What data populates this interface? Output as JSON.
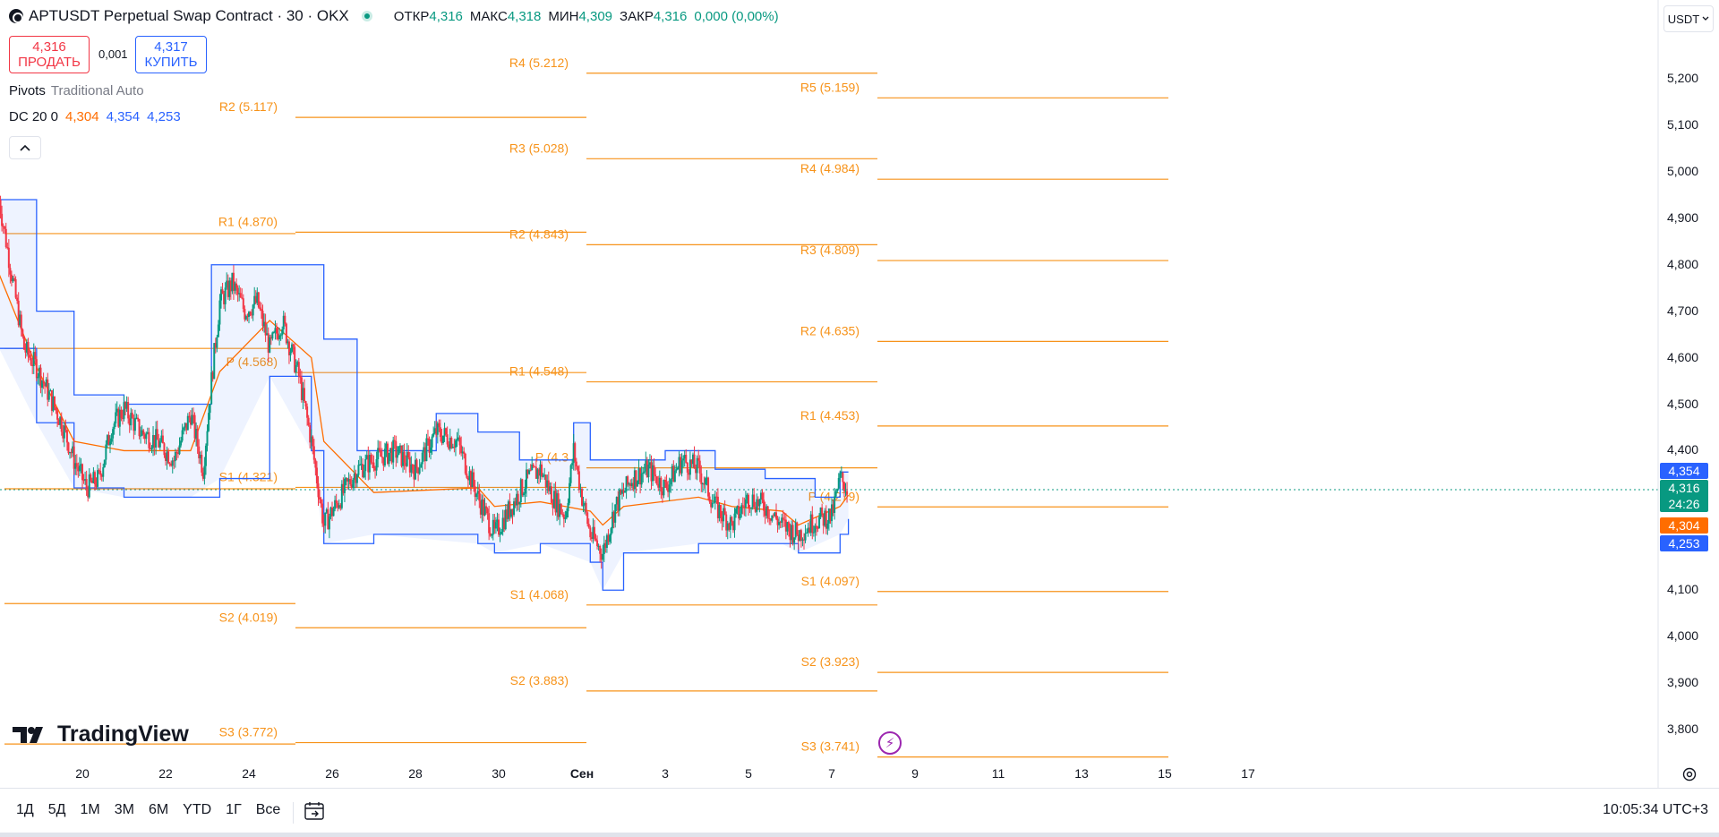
{
  "header": {
    "title": "APTUSDT Perpetual Swap Contract · 30 · OKX",
    "ohlc": [
      {
        "label": "ОТКР",
        "value": "4,316"
      },
      {
        "label": "МАКС",
        "value": "4,318"
      },
      {
        "label": "МИН",
        "value": "4,309"
      },
      {
        "label": "ЗАКР",
        "value": "4,316"
      },
      {
        "label": "",
        "value": "0,000 (0,00%)"
      }
    ]
  },
  "trade": {
    "sell_price": "4,316",
    "sell_label": "ПРОДАТЬ",
    "spread": "0,001",
    "buy_price": "4,317",
    "buy_label": "КУПИТЬ"
  },
  "indicators": {
    "pivots_name": "Pivots",
    "pivots_params": "Traditional Auto",
    "dc_name": "DC 20 0",
    "dc_mid": "4,304",
    "dc_upper": "4,354",
    "dc_lower": "4,253"
  },
  "currency": "USDT",
  "watermark": "TradingView",
  "bottom": {
    "timeframes": [
      "1Д",
      "5Д",
      "1М",
      "3М",
      "6М",
      "YTD",
      "1Г",
      "Все"
    ],
    "clock": "10:05:34 UTC+3"
  },
  "colors": {
    "up": "#089981",
    "down": "#f23645",
    "pivot": "#f7931a",
    "dc_band": "#2962ff",
    "dc_mid": "#ff6d00",
    "accent_purple": "#9c27b0"
  },
  "price_tags": [
    {
      "value": "4,354",
      "color": "#2962ff"
    },
    {
      "value": "4,316",
      "sub": "24:26",
      "color": "#089981"
    },
    {
      "value": "4,304",
      "color": "#ff6d00"
    },
    {
      "value": "4,253",
      "color": "#2962ff"
    }
  ],
  "chart_data": {
    "type": "candlestick",
    "price_axis_ticks": [
      "5,200",
      "5,100",
      "5,000",
      "4,900",
      "4,800",
      "4,700",
      "4,600",
      "4,500",
      "4,400",
      "4,100",
      "4,000",
      "3,900",
      "3,800"
    ],
    "time_axis_ticks": [
      "20",
      "22",
      "24",
      "26",
      "28",
      "30",
      "Сен",
      "3",
      "5",
      "7",
      "9",
      "11",
      "13",
      "15",
      "17"
    ],
    "pivot_periods": [
      {
        "levels": [
          {
            "name": "R2",
            "value": 5.117,
            "label": "R2 (5.117)"
          },
          {
            "name": "R1",
            "value": 4.87,
            "label": "R1 (4.870)"
          },
          {
            "name": "P",
            "value": 4.568,
            "label": "P (4.568)"
          },
          {
            "name": "S1",
            "value": 4.321,
            "label": "S1 (4.321)"
          },
          {
            "name": "S2",
            "value": 4.019,
            "label": "S2 (4.019)"
          },
          {
            "name": "S3",
            "value": 3.772,
            "label": "S3 (3.772)"
          }
        ]
      },
      {
        "levels": [
          {
            "name": "R4",
            "value": 5.212,
            "label": "R4 (5.212)"
          },
          {
            "name": "R3",
            "value": 5.028,
            "label": "R3 (5.028)"
          },
          {
            "name": "R2",
            "value": 4.843,
            "label": "R2 (4.843)"
          },
          {
            "name": "R1",
            "value": 4.548,
            "label": "R1 (4.548)"
          },
          {
            "name": "P",
            "value": 4.363,
            "label": "P (4.3"
          },
          {
            "name": "S1",
            "value": 4.068,
            "label": "S1 (4.068)"
          },
          {
            "name": "S2",
            "value": 3.883,
            "label": "S2 (3.883)"
          }
        ]
      },
      {
        "levels": [
          {
            "name": "R5",
            "value": 5.159,
            "label": "R5 (5.159)"
          },
          {
            "name": "R4",
            "value": 4.984,
            "label": "R4 (4.984)"
          },
          {
            "name": "R3",
            "value": 4.809,
            "label": "R3 (4.809)"
          },
          {
            "name": "R2",
            "value": 4.635,
            "label": "R2 (4.635)"
          },
          {
            "name": "R1",
            "value": 4.453,
            "label": "R1 (4.453)"
          },
          {
            "name": "P",
            "value": 4.279,
            "label": "P (4.279)"
          },
          {
            "name": "S1",
            "value": 4.097,
            "label": "S1 (4.097)"
          },
          {
            "name": "S2",
            "value": 3.923,
            "label": "S2 (3.923)"
          },
          {
            "name": "S3",
            "value": 3.741,
            "label": "S3 (3.741)"
          }
        ]
      }
    ],
    "price_path": [
      [
        18.0,
        4.94
      ],
      [
        18.3,
        4.78
      ],
      [
        18.6,
        4.62
      ],
      [
        18.9,
        4.58
      ],
      [
        19.2,
        4.52
      ],
      [
        19.5,
        4.46
      ],
      [
        19.8,
        4.38
      ],
      [
        20.1,
        4.32
      ],
      [
        20.4,
        4.34
      ],
      [
        20.7,
        4.45
      ],
      [
        21.0,
        4.49
      ],
      [
        21.4,
        4.44
      ],
      [
        21.8,
        4.42
      ],
      [
        22.2,
        4.38
      ],
      [
        22.6,
        4.48
      ],
      [
        22.9,
        4.36
      ],
      [
        23.1,
        4.55
      ],
      [
        23.3,
        4.72
      ],
      [
        23.6,
        4.76
      ],
      [
        23.9,
        4.7
      ],
      [
        24.2,
        4.72
      ],
      [
        24.5,
        4.62
      ],
      [
        24.8,
        4.68
      ],
      [
        25.2,
        4.56
      ],
      [
        25.5,
        4.42
      ],
      [
        25.8,
        4.24
      ],
      [
        26.2,
        4.3
      ],
      [
        26.6,
        4.36
      ],
      [
        27.0,
        4.38
      ],
      [
        27.5,
        4.4
      ],
      [
        28.0,
        4.36
      ],
      [
        28.5,
        4.44
      ],
      [
        29.0,
        4.42
      ],
      [
        29.5,
        4.3
      ],
      [
        29.9,
        4.22
      ],
      [
        30.3,
        4.28
      ],
      [
        30.7,
        4.34
      ],
      [
        31.0,
        4.36
      ],
      [
        31.3,
        4.3
      ],
      [
        31.6,
        4.26
      ],
      [
        31.8,
        4.4
      ],
      [
        32.0,
        4.3
      ],
      [
        32.2,
        4.22
      ],
      [
        32.5,
        4.18
      ],
      [
        32.8,
        4.28
      ],
      [
        33.2,
        4.34
      ],
      [
        33.6,
        4.36
      ],
      [
        34.0,
        4.32
      ],
      [
        34.4,
        4.38
      ],
      [
        34.8,
        4.36
      ],
      [
        35.2,
        4.28
      ],
      [
        35.6,
        4.24
      ],
      [
        36.0,
        4.3
      ],
      [
        36.4,
        4.28
      ],
      [
        36.8,
        4.24
      ],
      [
        37.2,
        4.22
      ],
      [
        37.6,
        4.25
      ],
      [
        38.0,
        4.26
      ],
      [
        38.2,
        4.34
      ],
      [
        38.4,
        4.316
      ]
    ],
    "donchian_upper": [
      [
        18.0,
        4.94
      ],
      [
        18.9,
        4.7
      ],
      [
        19.8,
        4.52
      ],
      [
        21.0,
        4.5
      ],
      [
        22.6,
        4.5
      ],
      [
        23.1,
        4.8
      ],
      [
        24.9,
        4.8
      ],
      [
        25.8,
        4.64
      ],
      [
        26.6,
        4.4
      ],
      [
        28.5,
        4.48
      ],
      [
        29.5,
        4.44
      ],
      [
        30.5,
        4.38
      ],
      [
        31.8,
        4.46
      ],
      [
        32.2,
        4.38
      ],
      [
        33.6,
        4.38
      ],
      [
        34.0,
        4.4
      ],
      [
        35.2,
        4.36
      ],
      [
        36.4,
        4.34
      ],
      [
        37.6,
        4.3
      ],
      [
        38.2,
        4.354
      ],
      [
        38.4,
        4.354
      ]
    ],
    "donchian_lower": [
      [
        18.0,
        4.62
      ],
      [
        18.9,
        4.46
      ],
      [
        19.8,
        4.32
      ],
      [
        21.0,
        4.3
      ],
      [
        22.6,
        4.3
      ],
      [
        23.3,
        4.34
      ],
      [
        24.5,
        4.56
      ],
      [
        25.5,
        4.4
      ],
      [
        25.8,
        4.2
      ],
      [
        27.0,
        4.22
      ],
      [
        29.5,
        4.2
      ],
      [
        29.9,
        4.18
      ],
      [
        31.0,
        4.2
      ],
      [
        32.2,
        4.16
      ],
      [
        32.5,
        4.1
      ],
      [
        33.0,
        4.18
      ],
      [
        34.8,
        4.2
      ],
      [
        35.6,
        4.2
      ],
      [
        36.8,
        4.2
      ],
      [
        37.2,
        4.18
      ],
      [
        38.2,
        4.22
      ],
      [
        38.4,
        4.253
      ]
    ],
    "donchian_mid": [
      [
        18.0,
        4.78
      ],
      [
        18.9,
        4.58
      ],
      [
        19.8,
        4.42
      ],
      [
        21.0,
        4.4
      ],
      [
        22.6,
        4.4
      ],
      [
        23.3,
        4.57
      ],
      [
        24.5,
        4.68
      ],
      [
        25.5,
        4.6
      ],
      [
        25.8,
        4.42
      ],
      [
        27.0,
        4.31
      ],
      [
        29.5,
        4.32
      ],
      [
        29.9,
        4.28
      ],
      [
        31.0,
        4.29
      ],
      [
        32.2,
        4.27
      ],
      [
        32.5,
        4.24
      ],
      [
        33.0,
        4.28
      ],
      [
        34.8,
        4.3
      ],
      [
        35.6,
        4.28
      ],
      [
        36.8,
        4.27
      ],
      [
        37.2,
        4.24
      ],
      [
        38.2,
        4.28
      ],
      [
        38.4,
        4.304
      ]
    ]
  }
}
